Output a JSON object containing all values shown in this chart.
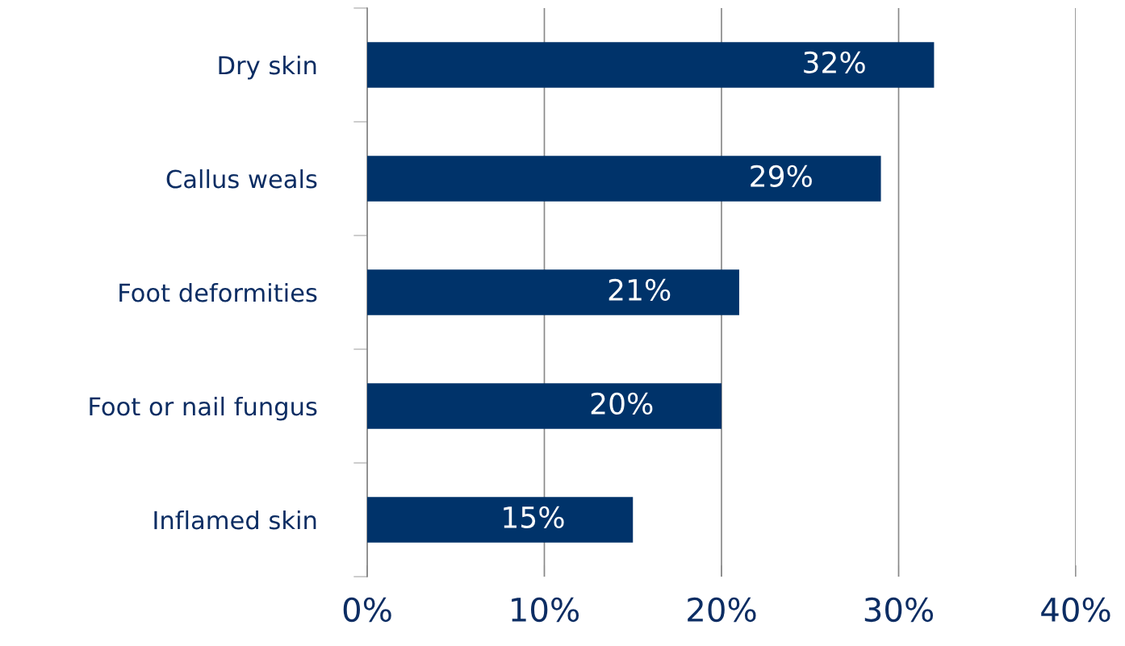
{
  "chart_data": {
    "type": "bar",
    "orientation": "horizontal",
    "categories": [
      "Dry skin",
      "Callus weals",
      "Foot deformities",
      "Foot or nail fungus",
      "Inflamed skin"
    ],
    "values": [
      32,
      29,
      21,
      20,
      15
    ],
    "value_labels": [
      "32%",
      "29%",
      "21%",
      "20%",
      "15%"
    ],
    "color": "#00336a",
    "xlim": [
      0,
      40
    ],
    "xticks": [
      {
        "value": 0,
        "label": "0%"
      },
      {
        "value": 10,
        "label": "10%"
      },
      {
        "value": 20,
        "label": "20%"
      },
      {
        "value": 30,
        "label": "30%"
      },
      {
        "value": 40,
        "label": "40%"
      }
    ],
    "grid": "x",
    "legend": false
  }
}
